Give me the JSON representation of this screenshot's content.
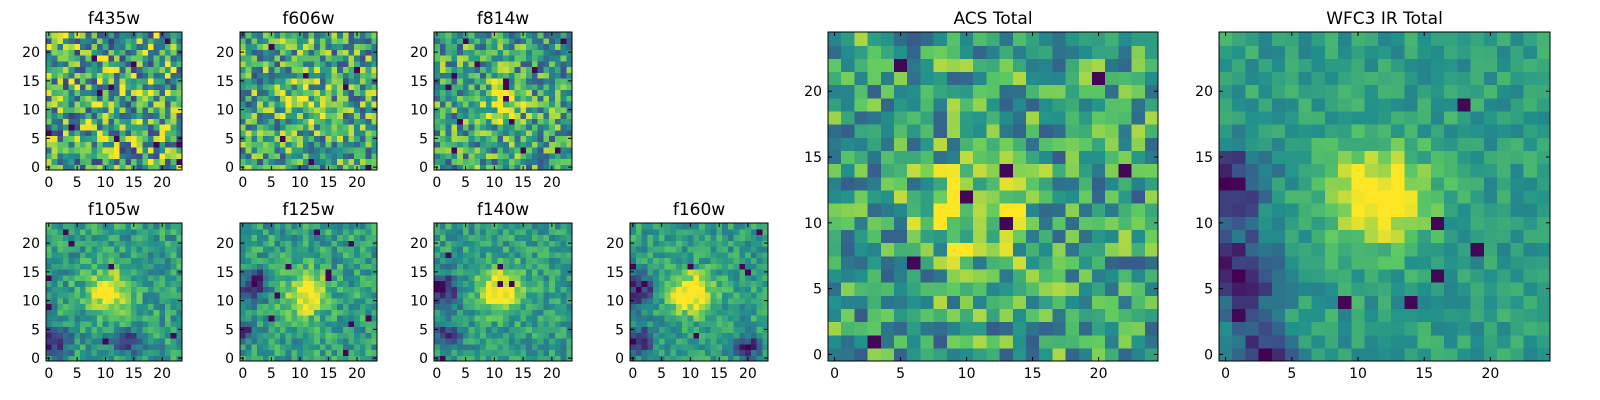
{
  "chart_data": [
    {
      "type": "heatmap",
      "title": "f435w",
      "xticks": [
        "0",
        "5",
        "10",
        "15",
        "20"
      ],
      "yticks": [
        "0",
        "5",
        "10",
        "15",
        "20"
      ],
      "grid_size": 24,
      "peak": [
        10.5,
        11.5
      ],
      "peak_strength": 0.12,
      "noise_amplitude": 0.42,
      "dark_regions": [],
      "colormap": "viridis"
    },
    {
      "type": "heatmap",
      "title": "f606w",
      "xticks": [
        "0",
        "5",
        "10",
        "15",
        "20"
      ],
      "yticks": [
        "0",
        "5",
        "10",
        "15",
        "20"
      ],
      "grid_size": 24,
      "peak": [
        10.5,
        11.5
      ],
      "peak_strength": 0.22,
      "noise_amplitude": 0.36,
      "dark_regions": [],
      "colormap": "viridis"
    },
    {
      "type": "heatmap",
      "title": "f814w",
      "xticks": [
        "0",
        "5",
        "10",
        "15",
        "20"
      ],
      "yticks": [
        "0",
        "5",
        "10",
        "15",
        "20"
      ],
      "grid_size": 24,
      "peak": [
        11,
        11.5
      ],
      "peak_strength": 0.3,
      "noise_amplitude": 0.33,
      "dark_regions": [],
      "colormap": "viridis"
    },
    {
      "type": "heatmap",
      "title": "f105w",
      "xticks": [
        "0",
        "5",
        "10",
        "15",
        "20"
      ],
      "yticks": [
        "0",
        "5",
        "10",
        "15",
        "20"
      ],
      "grid_size": 24,
      "peak": [
        10.5,
        11.5
      ],
      "peak_strength": 0.5,
      "noise_amplitude": 0.18,
      "dark_regions": [
        [
          1,
          3,
          2.5
        ],
        [
          14,
          3,
          2
        ]
      ],
      "colormap": "viridis"
    },
    {
      "type": "heatmap",
      "title": "f125w",
      "xticks": [
        "0",
        "5",
        "10",
        "15",
        "20"
      ],
      "yticks": [
        "0",
        "5",
        "10",
        "15",
        "20"
      ],
      "grid_size": 24,
      "peak": [
        11,
        11
      ],
      "peak_strength": 0.5,
      "noise_amplitude": 0.18,
      "dark_regions": [
        [
          2,
          13,
          2.5
        ],
        [
          0,
          5,
          2
        ]
      ],
      "colormap": "viridis"
    },
    {
      "type": "heatmap",
      "title": "f140w",
      "xticks": [
        "0",
        "5",
        "10",
        "15",
        "20"
      ],
      "yticks": [
        "0",
        "5",
        "10",
        "15",
        "20"
      ],
      "grid_size": 24,
      "peak": [
        11,
        12
      ],
      "peak_strength": 0.55,
      "noise_amplitude": 0.16,
      "dark_regions": [
        [
          1,
          12,
          3
        ],
        [
          2,
          4,
          2
        ]
      ],
      "colormap": "viridis"
    },
    {
      "type": "heatmap",
      "title": "f160w",
      "xticks": [
        "0",
        "5",
        "10",
        "15",
        "20"
      ],
      "yticks": [
        "0",
        "5",
        "10",
        "15",
        "20"
      ],
      "grid_size": 24,
      "peak": [
        10,
        11.5
      ],
      "peak_strength": 0.55,
      "noise_amplitude": 0.16,
      "dark_regions": [
        [
          1,
          12,
          3
        ],
        [
          1,
          3,
          2.5
        ],
        [
          20,
          2,
          2
        ]
      ],
      "colormap": "viridis"
    },
    {
      "type": "heatmap",
      "title": "ACS Total",
      "xticks": [
        "0",
        "5",
        "10",
        "15",
        "20"
      ],
      "yticks": [
        "0",
        "5",
        "10",
        "15",
        "20"
      ],
      "grid_size": 25,
      "peak": [
        10.5,
        11
      ],
      "peak_strength": 0.35,
      "noise_amplitude": 0.3,
      "dark_regions": [],
      "colormap": "viridis"
    },
    {
      "type": "heatmap",
      "title": "WFC3 IR Total",
      "xticks": [
        "0",
        "5",
        "10",
        "15",
        "20"
      ],
      "yticks": [
        "0",
        "5",
        "10",
        "15",
        "20"
      ],
      "grid_size": 25,
      "peak": [
        11.5,
        12
      ],
      "peak_strength": 0.55,
      "noise_amplitude": 0.12,
      "dark_regions": [
        [
          0,
          13,
          3
        ],
        [
          1,
          6,
          3
        ],
        [
          3,
          0,
          2
        ]
      ],
      "colormap": "viridis"
    }
  ],
  "colors": {
    "viridis_stops": [
      "#440154",
      "#3b528b",
      "#21918c",
      "#5ec962",
      "#fde725"
    ]
  }
}
